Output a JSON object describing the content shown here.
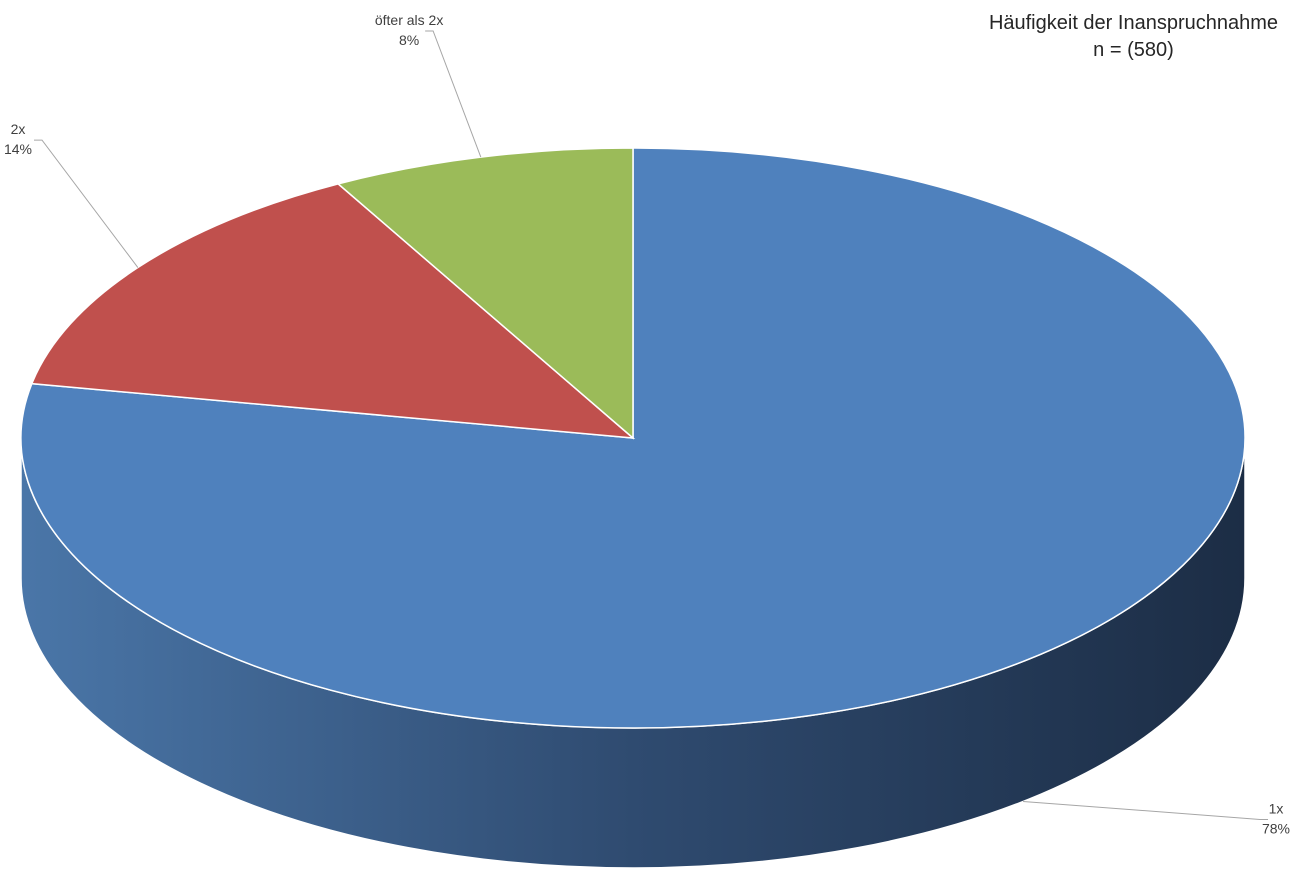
{
  "chart_data": {
    "type": "pie",
    "title": "Häufigkeit der Inanspruchnahme",
    "subtitle": "n = (580)",
    "slices": [
      {
        "label": "1x",
        "value": 78,
        "value_label": "78%",
        "color": "#4f81bd"
      },
      {
        "label": "2x",
        "value": 14,
        "value_label": "14%",
        "color": "#c0504d"
      },
      {
        "label": "öfter als 2x",
        "value": 8,
        "value_label": "8%",
        "color": "#9bbb59"
      }
    ],
    "legend": "none",
    "style": "3d"
  }
}
